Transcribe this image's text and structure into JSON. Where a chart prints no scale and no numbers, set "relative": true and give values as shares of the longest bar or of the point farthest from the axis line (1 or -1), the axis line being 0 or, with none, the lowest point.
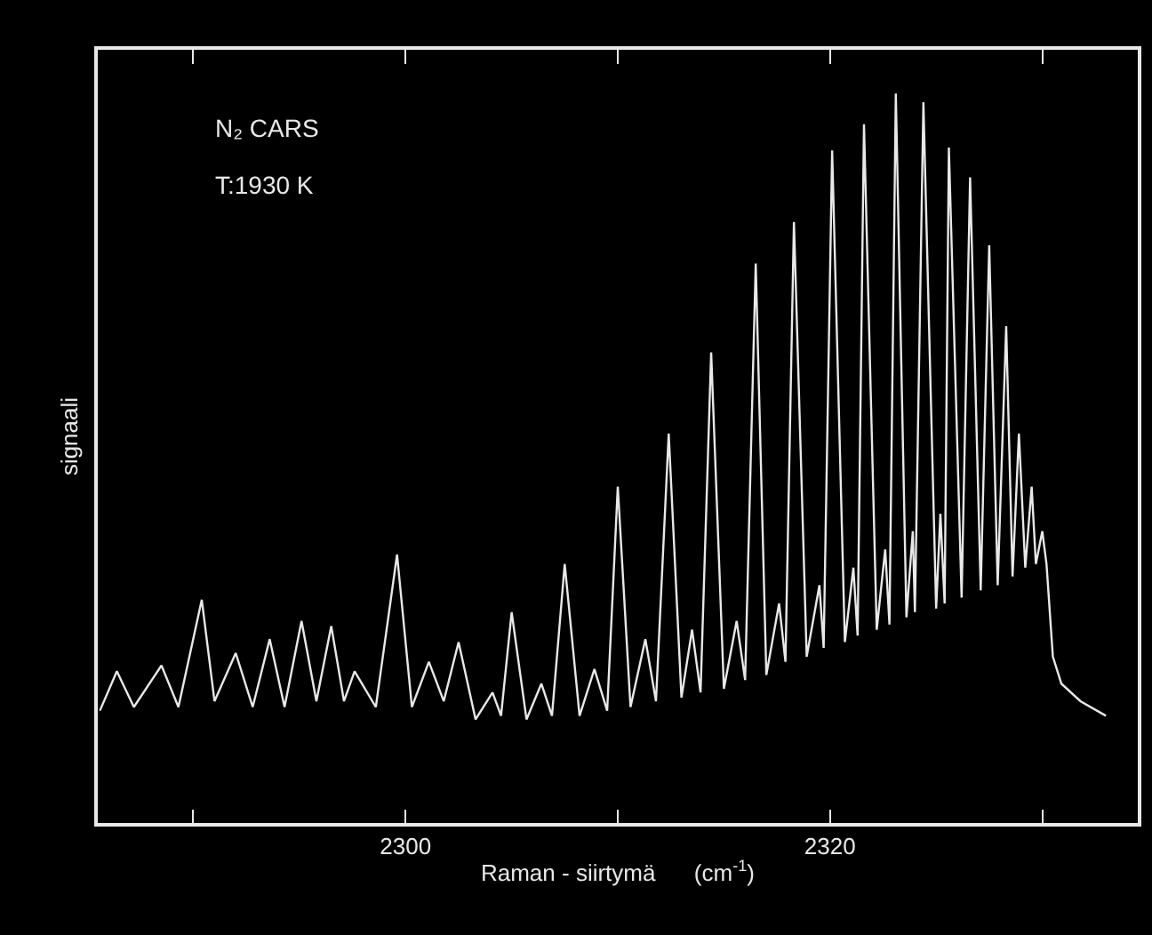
{
  "chart_data": {
    "type": "line",
    "relative": true,
    "xlabel": "Raman - siirtymä      (cm$^{-1}$)",
    "ylabel": "signaali",
    "annotations": [
      "N₂ CARS",
      "T:1930 K"
    ],
    "xlim": [
      2285.5,
      2334.5
    ],
    "xticks": [
      {
        "value": 2290,
        "label": null
      },
      2300,
      {
        "value": 2310,
        "label": null
      },
      2320,
      {
        "value": 2330,
        "label": null
      }
    ],
    "grid": false,
    "marker": "none",
    "line_style": "solid",
    "series": [
      {
        "color": "#e8e8e8",
        "x": [
          2285.6,
          2286.4,
          2287.2,
          2288.5,
          2289.3,
          2290.4,
          2291.0,
          2292.0,
          2292.8,
          2293.6,
          2294.3,
          2295.1,
          2295.8,
          2296.5,
          2297.1,
          2297.6,
          2298.6,
          2299.6,
          2300.3,
          2301.1,
          2301.8,
          2302.5,
          2303.3,
          2304.1,
          2304.5,
          2305.0,
          2305.7,
          2306.4,
          2306.9,
          2307.5,
          2308.2,
          2308.9,
          2309.5,
          2310.0,
          2310.6,
          2311.3,
          2311.8,
          2312.4,
          2313.0,
          2313.5,
          2313.9,
          2314.4,
          2315.0,
          2315.6,
          2316.0,
          2316.5,
          2317.0,
          2317.6,
          2317.9,
          2318.3,
          2318.9,
          2319.5,
          2319.7,
          2320.1,
          2320.7,
          2321.1,
          2321.3,
          2321.6,
          2322.2,
          2322.6,
          2322.8,
          2323.1,
          2323.6,
          2323.9,
          2324.0,
          2324.4,
          2325.0,
          2325.2,
          2325.4,
          2325.6,
          2326.2,
          2326.6,
          2327.1,
          2327.5,
          2327.9,
          2328.3,
          2328.6,
          2328.9,
          2329.2,
          2329.5,
          2329.7,
          2330.0,
          2330.2,
          2330.5,
          2330.9,
          2331.8,
          2333.0
        ],
        "values": [
          0.154,
          0.208,
          0.159,
          0.216,
          0.159,
          0.306,
          0.167,
          0.233,
          0.159,
          0.252,
          0.159,
          0.277,
          0.167,
          0.27,
          0.167,
          0.208,
          0.159,
          0.368,
          0.159,
          0.221,
          0.167,
          0.248,
          0.142,
          0.179,
          0.147,
          0.289,
          0.142,
          0.191,
          0.147,
          0.355,
          0.147,
          0.211,
          0.154,
          0.461,
          0.159,
          0.252,
          0.167,
          0.534,
          0.172,
          0.265,
          0.179,
          0.645,
          0.184,
          0.277,
          0.196,
          0.767,
          0.203,
          0.301,
          0.221,
          0.824,
          0.228,
          0.326,
          0.24,
          0.922,
          0.248,
          0.35,
          0.257,
          0.958,
          0.265,
          0.375,
          0.272,
          1,
          0.282,
          0.4,
          0.289,
          0.988,
          0.294,
          0.424,
          0.301,
          0.926,
          0.309,
          0.885,
          0.319,
          0.792,
          0.326,
          0.681,
          0.338,
          0.534,
          0.35,
          0.461,
          0.355,
          0.4,
          0.355,
          0.228,
          0.191,
          0.167,
          0.147
        ]
      }
    ]
  }
}
